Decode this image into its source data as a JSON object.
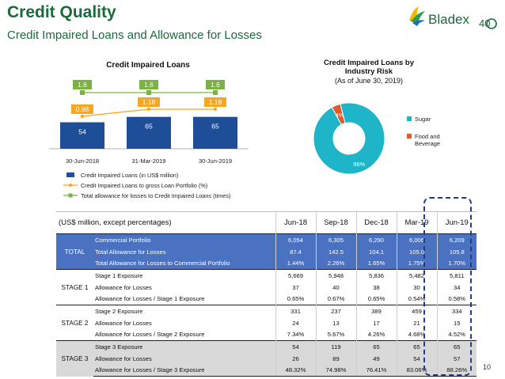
{
  "header": {
    "title": "Credit Quality",
    "subtitle": "Credit Impaired Loans and Allowance for Losses",
    "logo_text": "Bladex",
    "logo_badge": "40"
  },
  "colors": {
    "brand_green": "#1b6a3c",
    "bar_blue": "#1f4e99",
    "ratio_orange": "#f5a623",
    "times_green": "#7bb342",
    "pie_teal": "#1fb5c9",
    "pie_red": "#e05a2b",
    "total_row_blue": "#4a72c0",
    "stage3_gray": "#d9d9d9",
    "highlight_navy": "#1f3d8a"
  },
  "chart_data": [
    {
      "type": "bar",
      "title": "Credit Impaired Loans",
      "categories": [
        "30-Jun-2018",
        "31-Mar-2019",
        "30-Jun-2019"
      ],
      "series": [
        {
          "name": "Credit Impaired Loans (in US$ million)",
          "kind": "bar",
          "values": [
            54,
            65,
            65
          ],
          "labels": [
            "54",
            "65",
            "65"
          ]
        },
        {
          "name": "Credit Impaired Loans to gross Loan Portfolio (%)",
          "kind": "line",
          "values": [
            0.98,
            1.18,
            1.18
          ],
          "labels": [
            "0.98",
            "1.18",
            "1.18"
          ]
        },
        {
          "name": "Total allowance for losses to Credit Impaired Loans (times)",
          "kind": "line",
          "values": [
            1.6,
            1.6,
            1.6
          ],
          "labels": [
            "1.6",
            "1.6",
            "1.6"
          ]
        }
      ],
      "legend": "bottom",
      "grid": false
    },
    {
      "type": "pie",
      "title": "Credit Impaired Loans by Industry Risk",
      "subtitle": "(As of June 30, 2019)",
      "slices": [
        {
          "name": "Sugar",
          "value": 96,
          "label": "96%"
        },
        {
          "name": "Food and Beverage",
          "value": 4,
          "label": "4%"
        }
      ],
      "legend": "right",
      "donut": true
    }
  ],
  "table": {
    "header_label": "(US$ million, except percentages)",
    "periods": [
      "Jun-18",
      "Sep-18",
      "Dec-18",
      "Mar-19",
      "Jun-19"
    ],
    "groups": [
      {
        "name": "TOTAL",
        "rows": [
          {
            "label": "Commercial Portfolio",
            "values": [
              "6,054",
              "6,305",
              "6,290",
              "6,006",
              "6,209"
            ]
          },
          {
            "label": "Total Allowance for Losses",
            "values": [
              "87.4",
              "142.5",
              "104.1",
              "105.0",
              "105.8"
            ]
          },
          {
            "label": "Total Allowance for Losses to Commercial Portfolio",
            "values": [
              "1.44%",
              "2.26%",
              "1.65%",
              "1.75%",
              "1.70%"
            ]
          }
        ]
      },
      {
        "name": "STAGE 1",
        "rows": [
          {
            "label": "Stage 1 Exposure",
            "values": [
              "5,669",
              "5,948",
              "5,836",
              "5,482",
              "5,811"
            ]
          },
          {
            "label": "Allowance for Losses",
            "values": [
              "37",
              "40",
              "38",
              "30",
              "34"
            ]
          },
          {
            "label": "Allowance for Losses / Stage 1 Exposure",
            "values": [
              "0.65%",
              "0.67%",
              "0.65%",
              "0.54%",
              "0.58%"
            ]
          }
        ]
      },
      {
        "name": "STAGE 2",
        "rows": [
          {
            "label": "Stage 2 Exposure",
            "values": [
              "331",
              "237",
              "389",
              "459",
              "334"
            ]
          },
          {
            "label": "Allowance for Losses",
            "values": [
              "24",
              "13",
              "17",
              "21",
              "15"
            ]
          },
          {
            "label": "Allowance for Losses / Stage 2 Exposure",
            "values": [
              "7.34%",
              "5.67%",
              "4.26%",
              "4.68%",
              "4.52%"
            ]
          }
        ]
      },
      {
        "name": "STAGE 3",
        "rows": [
          {
            "label": "Stage 3 Exposure",
            "values": [
              "54",
              "119",
              "65",
              "65",
              "65"
            ]
          },
          {
            "label": "Allowance for Losses",
            "values": [
              "26",
              "89",
              "49",
              "54",
              "57"
            ]
          },
          {
            "label": "Allowance for Losses / Stage 3 Exposure",
            "values": [
              "48.32%",
              "74.98%",
              "76.41%",
              "83.06%",
              "88.26%"
            ]
          }
        ]
      }
    ]
  },
  "footer": {
    "page_number": "10"
  }
}
